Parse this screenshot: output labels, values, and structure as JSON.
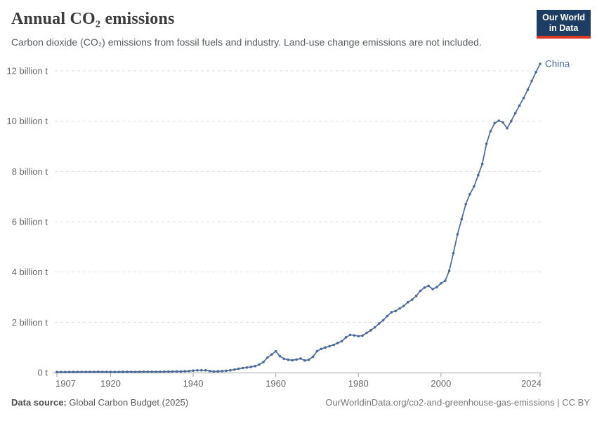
{
  "header": {
    "title": "Annual CO₂ emissions",
    "subtitle": "Carbon dioxide (CO₂) emissions from fossil fuels and industry. Land-use change emissions are not included.",
    "logo": {
      "line1": "Our World",
      "line2": "in Data"
    }
  },
  "footer": {
    "source_label": "Data source:",
    "source_value": " Global Carbon Budget (2025)",
    "credit": "OurWorldinData.org/co2-and-greenhouse-gas-emissions | CC BY"
  },
  "colors": {
    "line": "#4c6a9c",
    "end_label": "#4c6a9c",
    "grid": "#dddddd",
    "axis": "#a5a5a5",
    "tick_text": "#696969",
    "logo_bg": "#1d3d63",
    "logo_red": "#dc3827"
  },
  "chart_data": {
    "type": "line",
    "title": "Annual CO₂ emissions",
    "entity": "China",
    "end_label": "China",
    "unit": "billion tonnes",
    "ylabel": "",
    "xlabel": "",
    "xlim": [
      1907,
      2024
    ],
    "ylim": [
      0,
      12
    ],
    "grid": "horizontal-dashed",
    "legend_position": "end-of-line",
    "y_ticks": [
      {
        "value": 0,
        "label": "0 t"
      },
      {
        "value": 2,
        "label": "2 billion t"
      },
      {
        "value": 4,
        "label": "4 billion t"
      },
      {
        "value": 6,
        "label": "6 billion t"
      },
      {
        "value": 8,
        "label": "8 billion t"
      },
      {
        "value": 10,
        "label": "10 billion t"
      },
      {
        "value": 12,
        "label": "12 billion t"
      }
    ],
    "x_ticks": [
      {
        "value": 1907,
        "label": "1907"
      },
      {
        "value": 1920,
        "label": "1920"
      },
      {
        "value": 1940,
        "label": "1940"
      },
      {
        "value": 1960,
        "label": "1960"
      },
      {
        "value": 1980,
        "label": "1980"
      },
      {
        "value": 2000,
        "label": "2000"
      },
      {
        "value": 2024,
        "label": "2024"
      }
    ],
    "x": [
      1907,
      1908,
      1909,
      1910,
      1911,
      1912,
      1913,
      1914,
      1915,
      1916,
      1917,
      1918,
      1919,
      1920,
      1921,
      1922,
      1923,
      1924,
      1925,
      1926,
      1927,
      1928,
      1929,
      1930,
      1931,
      1932,
      1933,
      1934,
      1935,
      1936,
      1937,
      1938,
      1939,
      1940,
      1941,
      1942,
      1943,
      1944,
      1945,
      1946,
      1947,
      1948,
      1949,
      1950,
      1951,
      1952,
      1953,
      1954,
      1955,
      1956,
      1957,
      1958,
      1959,
      1960,
      1961,
      1962,
      1963,
      1964,
      1965,
      1966,
      1967,
      1968,
      1969,
      1970,
      1971,
      1972,
      1973,
      1974,
      1975,
      1976,
      1977,
      1978,
      1979,
      1980,
      1981,
      1982,
      1983,
      1984,
      1985,
      1986,
      1987,
      1988,
      1989,
      1990,
      1991,
      1992,
      1993,
      1994,
      1995,
      1996,
      1997,
      1998,
      1999,
      2000,
      2001,
      2002,
      2003,
      2004,
      2005,
      2006,
      2007,
      2008,
      2009,
      2010,
      2011,
      2012,
      2013,
      2014,
      2015,
      2016,
      2017,
      2018,
      2019,
      2020,
      2021,
      2022,
      2023,
      2024
    ],
    "series": [
      {
        "name": "China",
        "values": [
          0.021,
          0.021,
          0.022,
          0.024,
          0.024,
          0.025,
          0.027,
          0.027,
          0.028,
          0.029,
          0.03,
          0.029,
          0.028,
          0.025,
          0.026,
          0.028,
          0.03,
          0.031,
          0.03,
          0.029,
          0.032,
          0.033,
          0.034,
          0.033,
          0.032,
          0.033,
          0.035,
          0.038,
          0.042,
          0.047,
          0.046,
          0.052,
          0.062,
          0.078,
          0.088,
          0.092,
          0.088,
          0.062,
          0.041,
          0.05,
          0.06,
          0.072,
          0.092,
          0.12,
          0.15,
          0.18,
          0.2,
          0.225,
          0.26,
          0.32,
          0.42,
          0.6,
          0.72,
          0.85,
          0.65,
          0.55,
          0.51,
          0.49,
          0.52,
          0.56,
          0.48,
          0.51,
          0.63,
          0.85,
          0.94,
          1.0,
          1.05,
          1.1,
          1.18,
          1.25,
          1.4,
          1.5,
          1.48,
          1.45,
          1.47,
          1.58,
          1.68,
          1.8,
          1.95,
          2.08,
          2.25,
          2.4,
          2.45,
          2.55,
          2.65,
          2.8,
          2.9,
          3.05,
          3.25,
          3.38,
          3.45,
          3.32,
          3.4,
          3.55,
          3.65,
          4.05,
          4.75,
          5.5,
          6.1,
          6.7,
          7.1,
          7.4,
          7.85,
          8.3,
          9.1,
          9.6,
          9.92,
          10.02,
          9.95,
          9.72,
          10.0,
          10.32,
          10.62,
          10.92,
          11.25,
          11.6,
          11.95,
          12.28
        ]
      }
    ]
  }
}
